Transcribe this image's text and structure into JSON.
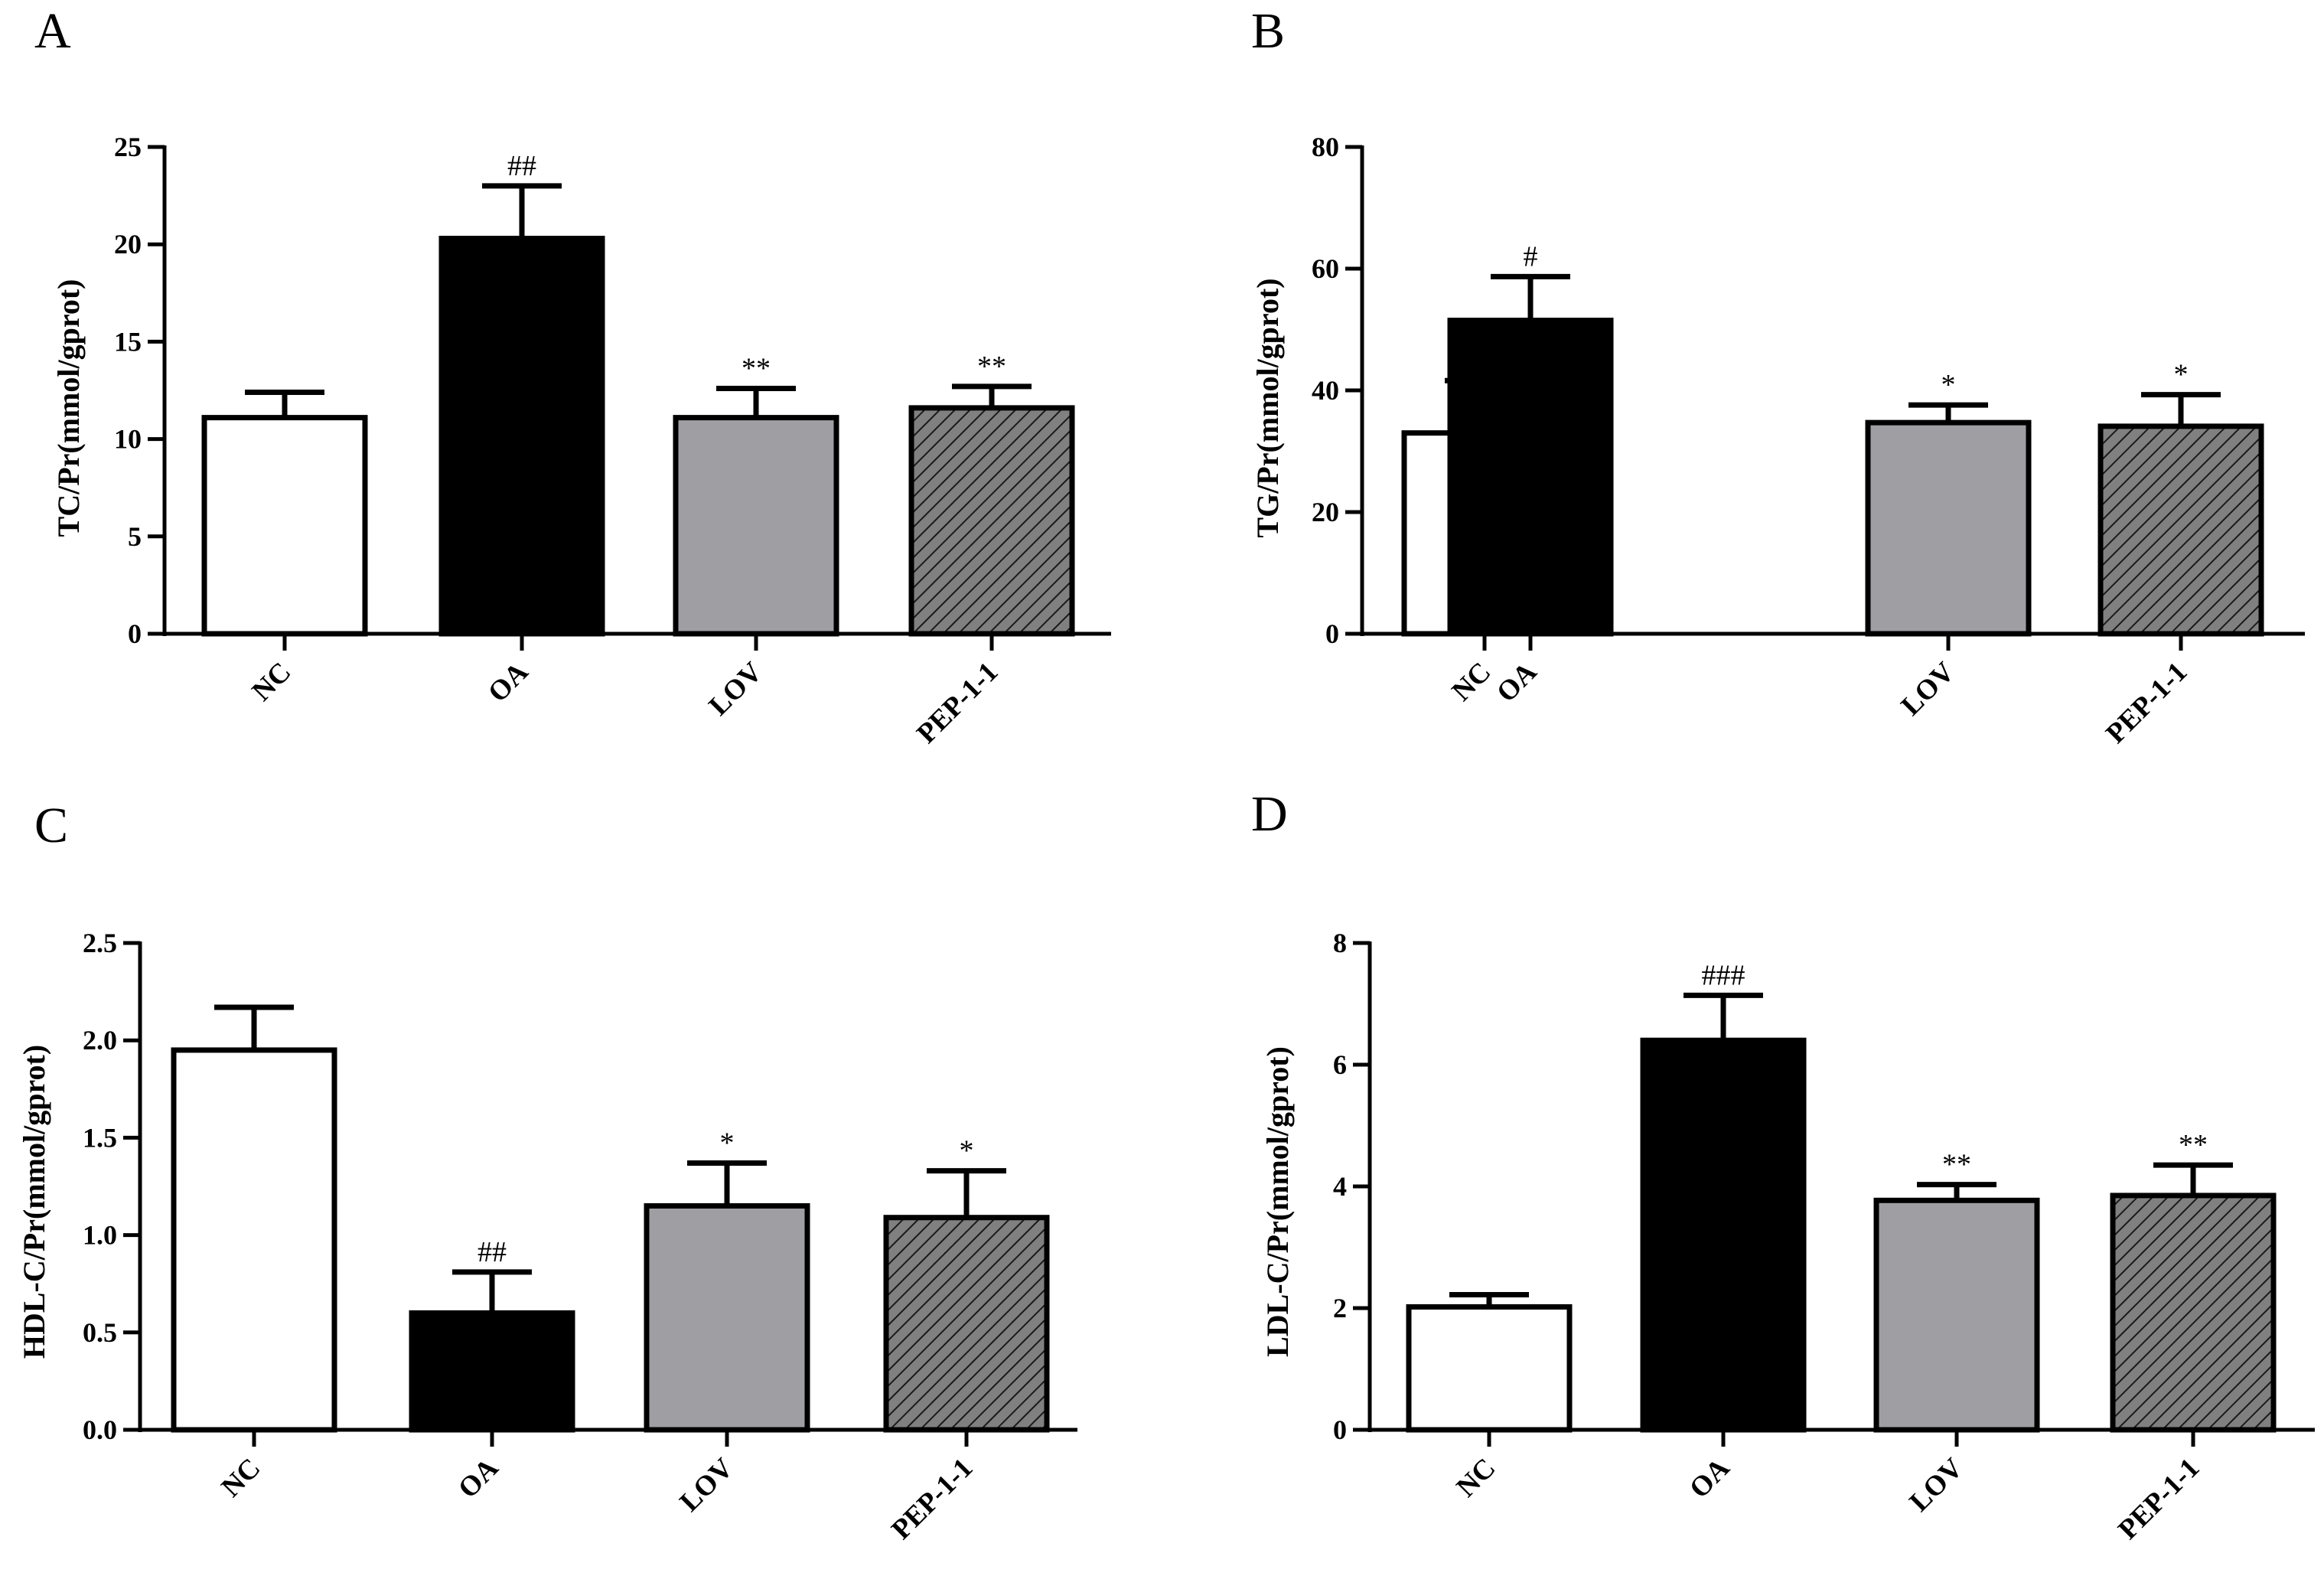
{
  "chart_data": [
    {
      "panel": "A",
      "type": "bar",
      "ylabel": "TC/Pr(mmol/gprot)",
      "categories": [
        "NC",
        "OA",
        "LOV",
        "PEP-1-1"
      ],
      "values": [
        11.1,
        20.3,
        11.1,
        11.6
      ],
      "errors": [
        1.3,
        2.7,
        1.5,
        1.1
      ],
      "significance": [
        "",
        "##",
        "**",
        "**"
      ],
      "ylim": [
        0,
        25
      ],
      "yticks": [
        0,
        5,
        10,
        15,
        20,
        25
      ],
      "ytick_labels": [
        "0",
        "5",
        "10",
        "15",
        "20",
        "25"
      ]
    },
    {
      "panel": "B",
      "type": "bar",
      "ylabel": "TG/Pr(mmol/gprot)",
      "categories": [
        "NC",
        "OA",
        "LOV",
        "PEP-1-1"
      ],
      "values": [
        33.0,
        51.5,
        34.7,
        34.1
      ],
      "errors": [
        8.6,
        7.2,
        2.9,
        5.2
      ],
      "significance": [
        "",
        "#",
        "*",
        "*"
      ],
      "ylim": [
        0,
        80
      ],
      "yticks": [
        0,
        20,
        40,
        60,
        80
      ],
      "ytick_labels": [
        "0",
        "20",
        "40",
        "60",
        "80"
      ]
    },
    {
      "panel": "C",
      "type": "bar",
      "ylabel": "HDL-C/Pr(mmol/gprot)",
      "categories": [
        "NC",
        "OA",
        "LOV",
        "PEP-1-1"
      ],
      "values": [
        1.95,
        0.6,
        1.15,
        1.09
      ],
      "errors": [
        0.22,
        0.21,
        0.22,
        0.24
      ],
      "significance": [
        "",
        "##",
        "*",
        "*"
      ],
      "ylim": [
        0,
        2.5
      ],
      "yticks": [
        0,
        0.5,
        1.0,
        1.5,
        2.0,
        2.5
      ],
      "ytick_labels": [
        "0.0",
        "0.5",
        "1.0",
        "1.5",
        "2.0",
        "2.5"
      ]
    },
    {
      "panel": "D",
      "type": "bar",
      "ylabel": "LDL-C/Pr(mmol/gprot)",
      "categories": [
        "NC",
        "OA",
        "LOV",
        "PEP-1-1"
      ],
      "values": [
        2.02,
        6.4,
        3.77,
        3.85
      ],
      "errors": [
        0.2,
        0.74,
        0.26,
        0.5
      ],
      "significance": [
        "",
        "###",
        "**",
        "**"
      ],
      "ylim": [
        0,
        8
      ],
      "yticks": [
        0,
        2,
        4,
        6,
        8
      ],
      "ytick_labels": [
        "0",
        "2",
        "4",
        "6",
        "8"
      ]
    }
  ],
  "bar_styles": [
    {
      "fill": "#ffffff"
    },
    {
      "fill": "#000000"
    },
    {
      "fill": "#9f9fa3"
    },
    {
      "fill": "#808080",
      "hatch": "#1a1a1a"
    }
  ]
}
